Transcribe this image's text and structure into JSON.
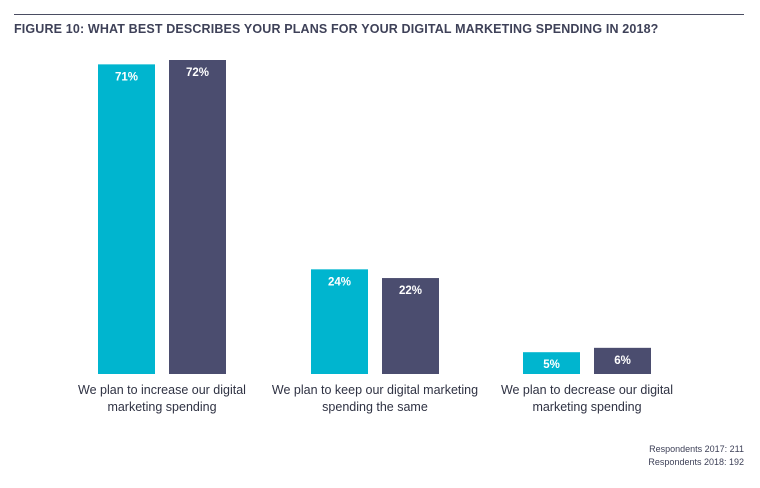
{
  "title": "FIGURE 10: WHAT BEST DESCRIBES YOUR PLANS FOR YOUR DIGITAL MARKETING SPENDING IN 2018?",
  "notes": [
    "Respondents 2017: 211",
    "Respondents 2018: 192"
  ],
  "colors": {
    "series2017": "#00b5cf",
    "series2018": "#4b4d6f",
    "title": "#3e4158"
  },
  "chart_data": {
    "type": "bar",
    "title": "FIGURE 10: WHAT BEST DESCRIBES YOUR PLANS FOR YOUR DIGITAL MARKETING SPENDING IN 2018?",
    "categories": [
      [
        "We plan to increase our digital",
        "marketing spending"
      ],
      [
        "We plan to keep our digital marketing",
        "spending the same"
      ],
      [
        "We plan to decrease our digital",
        "marketing spending"
      ]
    ],
    "series": [
      {
        "values": [
          71,
          24,
          5
        ],
        "labels": [
          "71%",
          "24%",
          "5%"
        ],
        "color": "#00b5cf"
      },
      {
        "values": [
          72,
          22,
          6
        ],
        "labels": [
          "72%",
          "22%",
          "6%"
        ],
        "color": "#4b4d6f"
      }
    ],
    "ylim": [
      0,
      72
    ],
    "grid": false,
    "legend": "none"
  }
}
